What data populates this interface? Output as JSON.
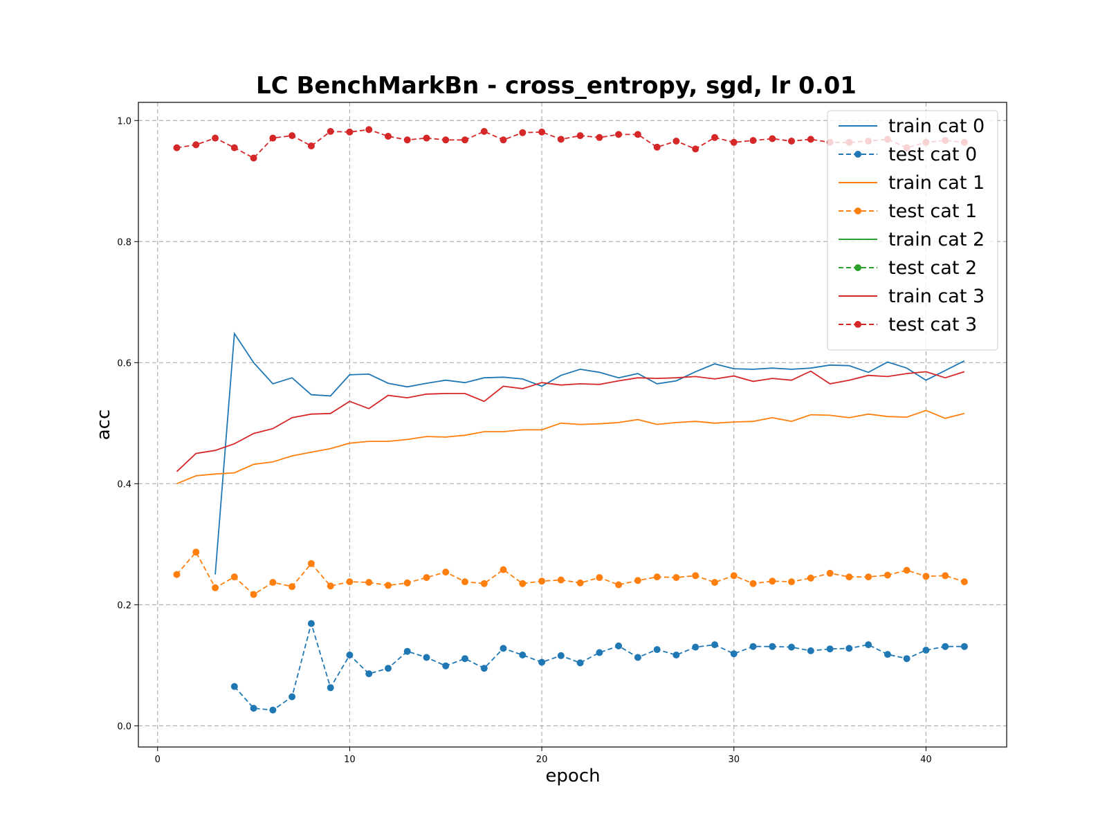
{
  "chart_data": {
    "type": "line",
    "title": "LC BenchMarkBn - cross_entropy, sgd, lr 0.01",
    "xlabel": "epoch",
    "ylabel": "acc",
    "xlim": [
      -1,
      44.2
    ],
    "ylim": [
      -0.035,
      1.03
    ],
    "xticks": [
      0,
      10,
      20,
      30,
      40
    ],
    "yticks": [
      0.0,
      0.2,
      0.4,
      0.6,
      0.8,
      1.0
    ],
    "xtick_labels": [
      "0",
      "10",
      "20",
      "30",
      "40"
    ],
    "ytick_labels": [
      "0.0",
      "0.2",
      "0.4",
      "0.6",
      "0.8",
      "1.0"
    ],
    "grid": true,
    "legend_position": "top-right",
    "series": [
      {
        "name": "train cat 0",
        "color": "#1f77b4",
        "style": "solid",
        "marker": false,
        "x": [
          3,
          4,
          5,
          6,
          7,
          8,
          9,
          10,
          11,
          12,
          13,
          14,
          15,
          16,
          17,
          18,
          19,
          20,
          21,
          22,
          23,
          24,
          25,
          26,
          27,
          28,
          29,
          30,
          31,
          32,
          33,
          34,
          35,
          36,
          37,
          38,
          39,
          40,
          41,
          42
        ],
        "values": [
          0.25,
          0.648,
          0.6,
          0.565,
          0.575,
          0.547,
          0.545,
          0.58,
          0.581,
          0.566,
          0.56,
          0.566,
          0.571,
          0.567,
          0.575,
          0.576,
          0.573,
          0.561,
          0.579,
          0.589,
          0.584,
          0.575,
          0.582,
          0.565,
          0.57,
          0.585,
          0.598,
          0.59,
          0.589,
          0.591,
          0.589,
          0.591,
          0.596,
          0.595,
          0.584,
          0.601,
          0.591,
          0.571,
          0.587,
          0.603
        ]
      },
      {
        "name": "test cat 0",
        "color": "#1f77b4",
        "style": "dashed",
        "marker": true,
        "x": [
          4,
          5,
          6,
          7,
          8,
          9,
          10,
          11,
          12,
          13,
          14,
          15,
          16,
          17,
          18,
          19,
          20,
          21,
          22,
          23,
          24,
          25,
          26,
          27,
          28,
          29,
          30,
          31,
          32,
          33,
          34,
          35,
          36,
          37,
          38,
          39,
          40,
          41,
          42
        ],
        "values": [
          0.065,
          0.029,
          0.026,
          0.048,
          0.169,
          0.063,
          0.117,
          0.086,
          0.095,
          0.123,
          0.113,
          0.099,
          0.111,
          0.095,
          0.128,
          0.117,
          0.105,
          0.116,
          0.104,
          0.121,
          0.132,
          0.113,
          0.126,
          0.117,
          0.13,
          0.134,
          0.119,
          0.131,
          0.131,
          0.13,
          0.124,
          0.127,
          0.128,
          0.134,
          0.118,
          0.111,
          0.125,
          0.131,
          0.131
        ]
      },
      {
        "name": "train cat 1",
        "color": "#ff7f0e",
        "style": "solid",
        "marker": false,
        "x": [
          1,
          2,
          3,
          4,
          5,
          6,
          7,
          8,
          9,
          10,
          11,
          12,
          13,
          14,
          15,
          16,
          17,
          18,
          19,
          20,
          21,
          22,
          23,
          24,
          25,
          26,
          27,
          28,
          29,
          30,
          31,
          32,
          33,
          34,
          35,
          36,
          37,
          38,
          39,
          40,
          41,
          42
        ],
        "values": [
          0.4,
          0.413,
          0.416,
          0.418,
          0.432,
          0.436,
          0.446,
          0.452,
          0.458,
          0.467,
          0.47,
          0.47,
          0.473,
          0.478,
          0.477,
          0.48,
          0.486,
          0.486,
          0.489,
          0.489,
          0.5,
          0.498,
          0.499,
          0.501,
          0.506,
          0.498,
          0.501,
          0.503,
          0.5,
          0.502,
          0.503,
          0.509,
          0.503,
          0.514,
          0.513,
          0.509,
          0.515,
          0.511,
          0.51,
          0.521,
          0.508,
          0.516
        ]
      },
      {
        "name": "test cat 1",
        "color": "#ff7f0e",
        "style": "dashed",
        "marker": true,
        "x": [
          1,
          2,
          3,
          4,
          5,
          6,
          7,
          8,
          9,
          10,
          11,
          12,
          13,
          14,
          15,
          16,
          17,
          18,
          19,
          20,
          21,
          22,
          23,
          24,
          25,
          26,
          27,
          28,
          29,
          30,
          31,
          32,
          33,
          34,
          35,
          36,
          37,
          38,
          39,
          40,
          41,
          42
        ],
        "values": [
          0.25,
          0.287,
          0.228,
          0.246,
          0.217,
          0.237,
          0.23,
          0.268,
          0.231,
          0.238,
          0.237,
          0.232,
          0.236,
          0.245,
          0.254,
          0.238,
          0.235,
          0.258,
          0.235,
          0.239,
          0.241,
          0.236,
          0.245,
          0.233,
          0.24,
          0.246,
          0.245,
          0.248,
          0.237,
          0.248,
          0.235,
          0.239,
          0.238,
          0.244,
          0.252,
          0.246,
          0.246,
          0.249,
          0.257,
          0.247,
          0.248,
          0.238
        ]
      },
      {
        "name": "train cat 2",
        "color": "#2ca02c",
        "style": "solid",
        "marker": false,
        "x": [],
        "values": []
      },
      {
        "name": "test cat 2",
        "color": "#2ca02c",
        "style": "dashed",
        "marker": true,
        "x": [],
        "values": []
      },
      {
        "name": "train cat 3",
        "color": "#d62728",
        "style": "solid",
        "marker": false,
        "x": [
          1,
          2,
          3,
          4,
          5,
          6,
          7,
          8,
          9,
          10,
          11,
          12,
          13,
          14,
          15,
          16,
          17,
          18,
          19,
          20,
          21,
          22,
          23,
          24,
          25,
          26,
          27,
          28,
          29,
          30,
          31,
          32,
          33,
          34,
          35,
          36,
          37,
          38,
          39,
          40,
          41,
          42
        ],
        "values": [
          0.42,
          0.45,
          0.455,
          0.466,
          0.483,
          0.491,
          0.509,
          0.515,
          0.516,
          0.536,
          0.524,
          0.546,
          0.542,
          0.548,
          0.549,
          0.549,
          0.536,
          0.561,
          0.557,
          0.567,
          0.563,
          0.565,
          0.564,
          0.57,
          0.575,
          0.574,
          0.575,
          0.577,
          0.573,
          0.578,
          0.569,
          0.574,
          0.571,
          0.586,
          0.565,
          0.571,
          0.579,
          0.577,
          0.582,
          0.585,
          0.575,
          0.585
        ]
      },
      {
        "name": "test cat 3",
        "color": "#d62728",
        "style": "dashed",
        "marker": true,
        "x": [
          1,
          2,
          3,
          4,
          5,
          6,
          7,
          8,
          9,
          10,
          11,
          12,
          13,
          14,
          15,
          16,
          17,
          18,
          19,
          20,
          21,
          22,
          23,
          24,
          25,
          26,
          27,
          28,
          29,
          30,
          31,
          32,
          33,
          34,
          35,
          36,
          37,
          38,
          39,
          40,
          41,
          42
        ],
        "values": [
          0.955,
          0.96,
          0.971,
          0.955,
          0.938,
          0.971,
          0.975,
          0.958,
          0.982,
          0.981,
          0.985,
          0.974,
          0.968,
          0.971,
          0.968,
          0.968,
          0.982,
          0.968,
          0.98,
          0.981,
          0.969,
          0.975,
          0.972,
          0.977,
          0.977,
          0.956,
          0.966,
          0.953,
          0.972,
          0.964,
          0.967,
          0.97,
          0.966,
          0.969,
          0.964,
          0.964,
          0.966,
          0.969,
          0.955,
          0.964,
          0.967,
          0.964
        ]
      }
    ]
  }
}
